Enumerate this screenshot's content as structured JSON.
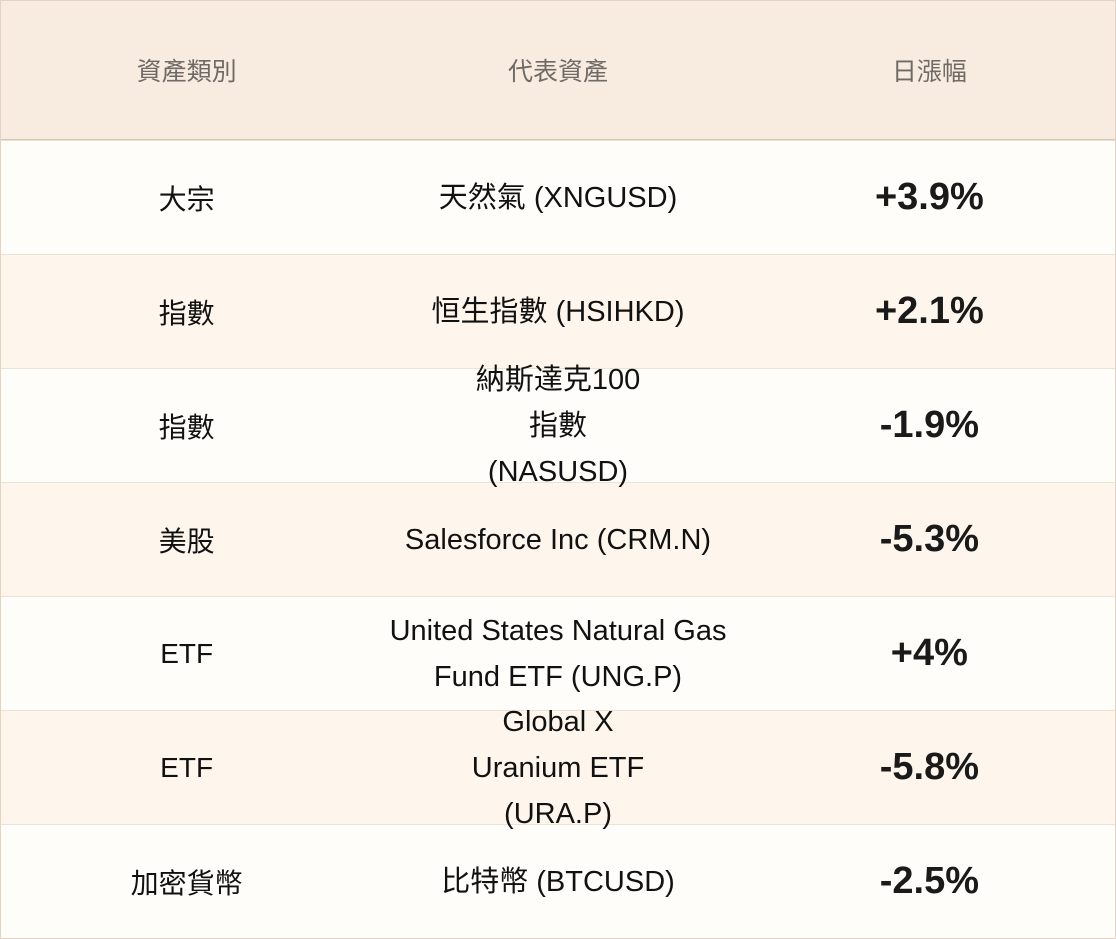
{
  "table": {
    "headers": [
      "資產類別",
      "代表資產",
      "日漲幅"
    ],
    "rows": [
      {
        "category": "大宗",
        "asset": "天然氣 (XNGUSD)",
        "change": "+3.9%"
      },
      {
        "category": "指數",
        "asset": "恒生指數 (HSIHKD)",
        "change": "+2.1%"
      },
      {
        "category": "指數",
        "asset": "納斯達克100指數 (NASUSD)",
        "change": "-1.9%"
      },
      {
        "category": "美股",
        "asset": "Salesforce Inc (CRM.N)",
        "change": "-5.3%"
      },
      {
        "category": "ETF",
        "asset": "United States Natural Gas Fund ETF (UNG.P)",
        "change": "+4%"
      },
      {
        "category": "ETF",
        "asset": "Global X Uranium ETF (URA.P)",
        "change": "-5.8%"
      },
      {
        "category": "加密貨幣",
        "asset": "比特幣 (BTCUSD)",
        "change": "-2.5%"
      }
    ]
  },
  "colors": {
    "header_bg": "#f8ece0",
    "row_even_bg": "#fef6ec",
    "row_odd_bg": "#fefdfa"
  }
}
